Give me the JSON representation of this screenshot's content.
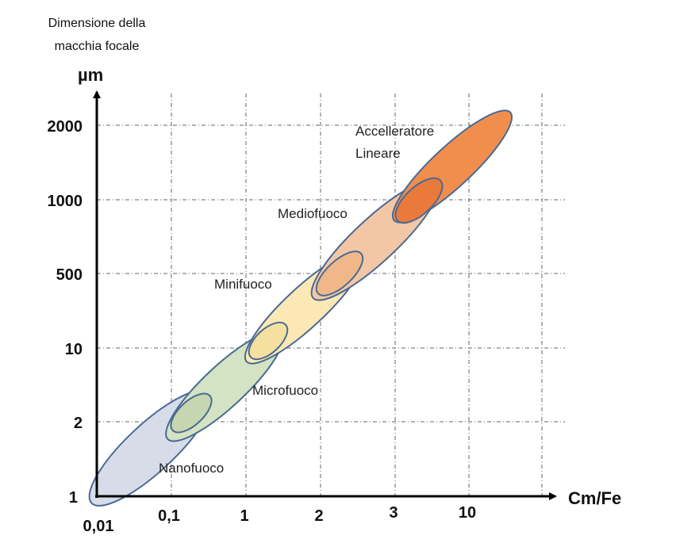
{
  "y_title_line1": "Dimensione della",
  "y_title_line2": "macchia focale",
  "y_unit": "µm",
  "x_title": "Cm/Fe",
  "y_ticks": [
    "1",
    "2",
    "10",
    "500",
    "1000",
    "2000"
  ],
  "x_ticks": [
    "0,01",
    "0,1",
    "1",
    "2",
    "3",
    "10"
  ],
  "regions": [
    {
      "name": "Nanofuoco",
      "color": "#d6dde9"
    },
    {
      "name": "Microfuoco",
      "color": "#d3e3c3"
    },
    {
      "name": "Minifuoco",
      "color": "#fbe8b5"
    },
    {
      "name": "Mediofuoco",
      "color": "#f3c7a5"
    },
    {
      "name": "Accelleratore",
      "color": "#f28e4d"
    }
  ],
  "region_label_extra": "Lineare",
  "overlap_colors": [
    "#c5d6b0",
    "#f5e0a0",
    "#f0b888",
    "#ea7a3c"
  ],
  "axis_color": "#000000",
  "outline_color": "#4a6a94"
}
